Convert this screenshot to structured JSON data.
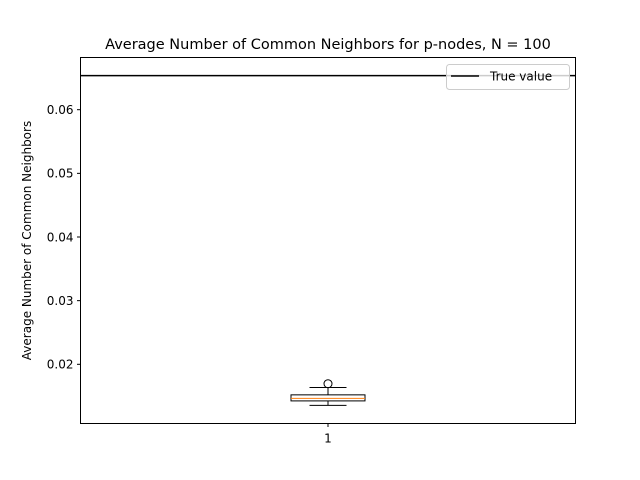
{
  "chart_data": {
    "type": "boxplot",
    "title": "Average Number of Common Neighbors for p-nodes, N = 100",
    "xlabel": "",
    "ylabel": "Average Number of Common Neighbors",
    "ylim": [
      0.0107,
      0.0682
    ],
    "y_ticks": [
      0.02,
      0.03,
      0.04,
      0.05,
      0.06
    ],
    "y_tick_labels": [
      "0.02",
      "0.03",
      "0.04",
      "0.05",
      "0.06"
    ],
    "x_ticks": [
      1
    ],
    "x_tick_labels": [
      "1"
    ],
    "grid": false,
    "legend_position": "top-right",
    "boxes": [
      {
        "position": 1,
        "whisker_low": 0.01355,
        "q1": 0.01425,
        "median": 0.01465,
        "q3": 0.0152,
        "whisker_high": 0.01635,
        "outliers": [
          0.01695
        ],
        "box_color": "#000000",
        "median_color": "#ff7f0e"
      }
    ],
    "reference_lines": [
      {
        "label": "True value",
        "y": 0.06535,
        "color": "#000000"
      }
    ]
  }
}
